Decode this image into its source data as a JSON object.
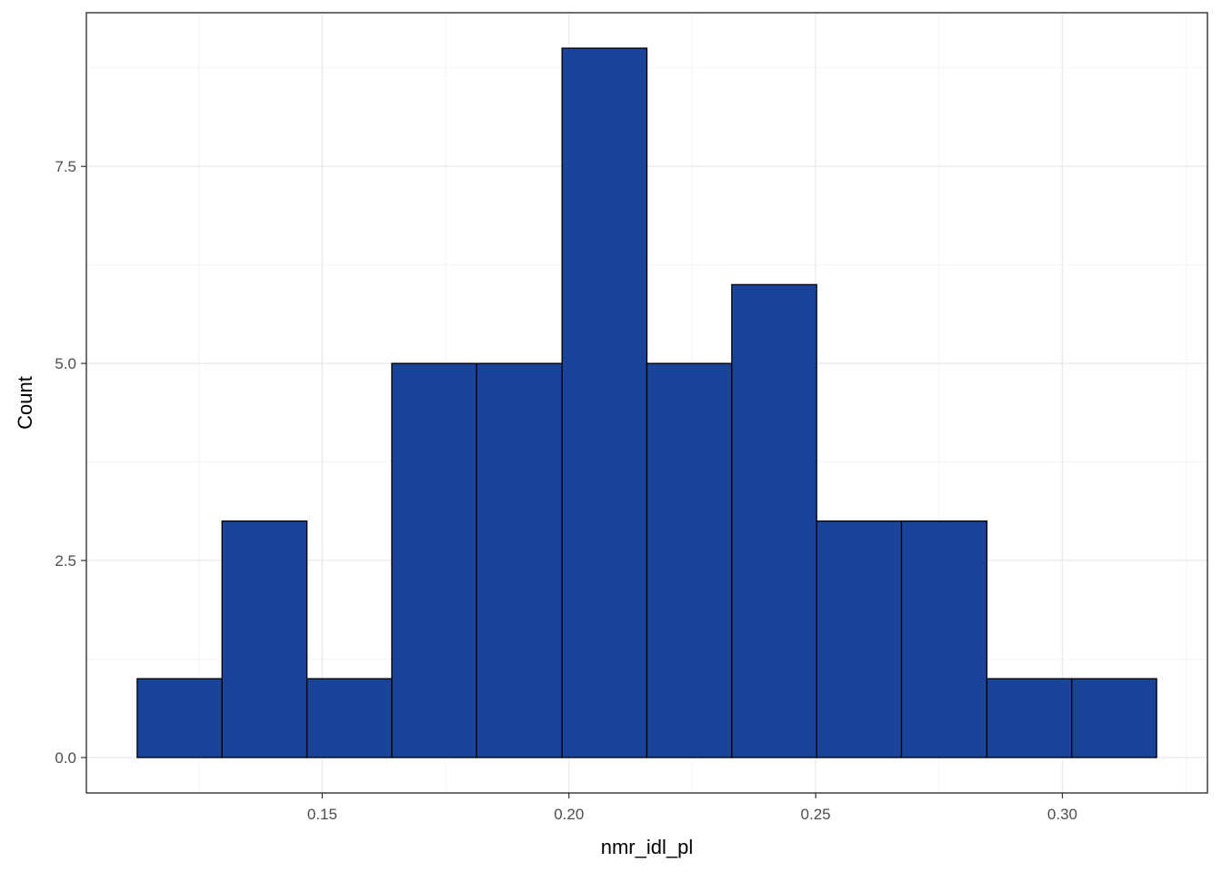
{
  "chart_data": {
    "type": "bar",
    "title": "",
    "xlabel": "nmr_idl_pl",
    "ylabel": "Count",
    "bins": [
      {
        "x0": 0.1125,
        "x1": 0.1297,
        "count": 1
      },
      {
        "x0": 0.1297,
        "x1": 0.1469,
        "count": 3
      },
      {
        "x0": 0.1469,
        "x1": 0.1641,
        "count": 1
      },
      {
        "x0": 0.1641,
        "x1": 0.1813,
        "count": 5
      },
      {
        "x0": 0.1813,
        "x1": 0.1986,
        "count": 5
      },
      {
        "x0": 0.1986,
        "x1": 0.2158,
        "count": 9
      },
      {
        "x0": 0.2158,
        "x1": 0.233,
        "count": 5
      },
      {
        "x0": 0.233,
        "x1": 0.2502,
        "count": 6
      },
      {
        "x0": 0.2502,
        "x1": 0.2674,
        "count": 3
      },
      {
        "x0": 0.2674,
        "x1": 0.2847,
        "count": 3
      },
      {
        "x0": 0.2847,
        "x1": 0.3019,
        "count": 1
      },
      {
        "x0": 0.3019,
        "x1": 0.3191,
        "count": 1
      }
    ],
    "xlim": [
      0.1022,
      0.3294
    ],
    "ylim": [
      -0.45,
      9.45
    ],
    "x_ticks": [
      0.15,
      0.2,
      0.25,
      0.3
    ],
    "x_tick_labels": [
      "0.15",
      "0.20",
      "0.25",
      "0.30"
    ],
    "y_ticks": [
      0,
      2.5,
      5,
      7.5
    ],
    "y_tick_labels": [
      "0.0",
      "2.5",
      "5.0",
      "7.5"
    ],
    "grid": true,
    "bar_fill": "#1a4499",
    "bar_stroke": "#000000"
  }
}
